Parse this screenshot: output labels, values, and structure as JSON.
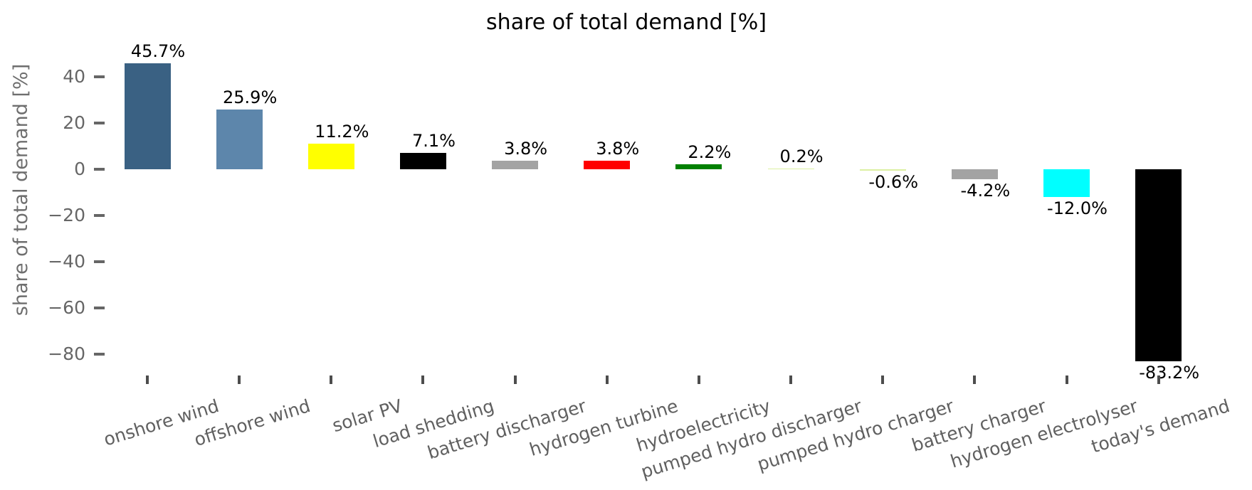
{
  "chart_data": {
    "type": "bar",
    "title": "share of total demand [%]",
    "ylabel": "share of total demand [%]",
    "unit": "%",
    "categories": [
      "onshore wind",
      "offshore wind",
      "solar PV",
      "load shedding",
      "battery discharger",
      "hydrogen turbine",
      "hydroelectricity",
      "pumped hydro discharger",
      "pumped hydro charger",
      "battery charger",
      "hydrogen electrolyser",
      "today's demand"
    ],
    "values": [
      45.7,
      25.9,
      11.2,
      7.1,
      3.8,
      3.8,
      2.2,
      0.2,
      -0.6,
      -4.2,
      -12.0,
      -83.2
    ],
    "value_labels": [
      "45.7%",
      "25.9%",
      "11.2%",
      "7.1%",
      "3.8%",
      "3.8%",
      "2.2%",
      "0.2%",
      "-0.6%",
      "-4.2%",
      "-12.0%",
      "-83.2%"
    ],
    "bar_colors": [
      "#3a6183",
      "#5d86ab",
      "#ffff00",
      "#000000",
      "#a3a3a3",
      "#ff0000",
      "#008000",
      "#dcf0a2",
      "#dcf0a2",
      "#a3a3a3",
      "#00ffff",
      "#000000"
    ],
    "yticks": [
      40,
      20,
      0,
      -20,
      -40,
      -60,
      -80
    ],
    "ytick_labels": [
      "40",
      "20",
      "0",
      "−20",
      "−40",
      "−60",
      "−80"
    ],
    "ylim": [
      -89,
      53
    ],
    "grid": false,
    "legend": "none",
    "text_colors": {
      "title": "#000000",
      "axis": "#666666",
      "bar_label": "#000000"
    }
  }
}
